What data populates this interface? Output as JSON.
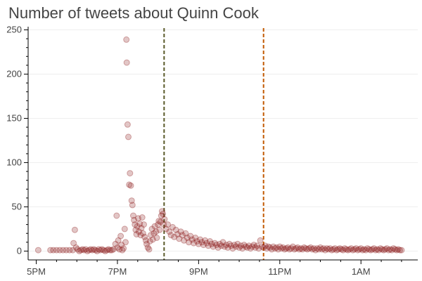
{
  "chart_data": {
    "type": "scatter",
    "title": "Number of tweets about Quinn Cook",
    "xlabel": "",
    "ylabel": "",
    "x_unit": "hours (17 = 5PM, 25 = 1AM next day)",
    "xlim": [
      16.8,
      26.4
    ],
    "ylim": [
      -10,
      252
    ],
    "x_ticks": [
      {
        "value": 17,
        "label": "5PM"
      },
      {
        "value": 19,
        "label": "7PM"
      },
      {
        "value": 21,
        "label": "9PM"
      },
      {
        "value": 23,
        "label": "11PM"
      },
      {
        "value": 25,
        "label": "1AM"
      }
    ],
    "y_ticks": [
      {
        "value": 0,
        "label": "0"
      },
      {
        "value": 50,
        "label": "50"
      },
      {
        "value": 100,
        "label": "100"
      },
      {
        "value": 150,
        "label": "150"
      },
      {
        "value": 200,
        "label": "200"
      },
      {
        "value": 250,
        "label": "250"
      }
    ],
    "grid": "horizontal",
    "legend": "none",
    "point_color": "#8b1a1a",
    "point_opacity": 0.25,
    "vlines": [
      {
        "x": 20.15,
        "color": "#5a5a2a"
      },
      {
        "x": 22.6,
        "color": "#c25a00"
      }
    ],
    "points": [
      [
        17.05,
        1
      ],
      [
        17.35,
        1
      ],
      [
        17.42,
        1
      ],
      [
        17.5,
        1
      ],
      [
        17.58,
        1
      ],
      [
        17.66,
        1
      ],
      [
        17.74,
        1
      ],
      [
        17.82,
        1
      ],
      [
        17.9,
        1
      ],
      [
        17.98,
        4
      ],
      [
        17.92,
        9
      ],
      [
        17.95,
        24
      ],
      [
        18.02,
        2
      ],
      [
        18.06,
        0
      ],
      [
        18.1,
        1
      ],
      [
        18.14,
        2
      ],
      [
        18.18,
        1
      ],
      [
        18.22,
        2
      ],
      [
        18.26,
        0
      ],
      [
        18.3,
        1
      ],
      [
        18.34,
        2
      ],
      [
        18.38,
        1
      ],
      [
        18.42,
        2
      ],
      [
        18.46,
        1
      ],
      [
        18.5,
        0
      ],
      [
        18.54,
        2
      ],
      [
        18.58,
        1
      ],
      [
        18.62,
        2
      ],
      [
        18.66,
        1
      ],
      [
        18.7,
        0
      ],
      [
        18.74,
        1
      ],
      [
        18.78,
        2
      ],
      [
        18.82,
        1
      ],
      [
        18.86,
        1
      ],
      [
        18.9,
        2
      ],
      [
        18.95,
        8
      ],
      [
        18.98,
        40
      ],
      [
        19.0,
        4
      ],
      [
        19.02,
        12
      ],
      [
        19.05,
        2
      ],
      [
        19.08,
        17
      ],
      [
        19.1,
        7
      ],
      [
        19.12,
        1
      ],
      [
        19.15,
        3
      ],
      [
        19.18,
        25
      ],
      [
        19.2,
        10
      ],
      [
        19.22,
        239
      ],
      [
        19.23,
        213
      ],
      [
        19.25,
        143
      ],
      [
        19.27,
        129
      ],
      [
        19.29,
        75
      ],
      [
        19.31,
        88
      ],
      [
        19.33,
        74
      ],
      [
        19.35,
        57
      ],
      [
        19.37,
        52
      ],
      [
        19.39,
        40
      ],
      [
        19.41,
        35
      ],
      [
        19.43,
        30
      ],
      [
        19.45,
        24
      ],
      [
        19.47,
        19
      ],
      [
        19.49,
        28
      ],
      [
        19.51,
        37
      ],
      [
        19.53,
        22
      ],
      [
        19.55,
        31
      ],
      [
        19.57,
        18
      ],
      [
        19.59,
        26
      ],
      [
        19.61,
        38
      ],
      [
        19.63,
        20
      ],
      [
        19.65,
        30
      ],
      [
        19.67,
        16
      ],
      [
        19.7,
        12
      ],
      [
        19.72,
        8
      ],
      [
        19.75,
        4
      ],
      [
        19.78,
        2
      ],
      [
        19.8,
        11
      ],
      [
        19.82,
        18
      ],
      [
        19.85,
        25
      ],
      [
        19.87,
        13
      ],
      [
        19.9,
        20
      ],
      [
        19.92,
        28
      ],
      [
        19.95,
        22
      ],
      [
        19.97,
        15
      ],
      [
        20.0,
        30
      ],
      [
        20.02,
        34
      ],
      [
        20.04,
        24
      ],
      [
        20.06,
        33
      ],
      [
        20.08,
        40
      ],
      [
        20.1,
        45
      ],
      [
        20.12,
        42
      ],
      [
        20.14,
        30
      ],
      [
        20.16,
        36
      ],
      [
        20.2,
        25
      ],
      [
        20.24,
        30
      ],
      [
        20.28,
        22
      ],
      [
        20.32,
        18
      ],
      [
        20.36,
        27
      ],
      [
        20.4,
        16
      ],
      [
        20.44,
        24
      ],
      [
        20.48,
        19
      ],
      [
        20.52,
        14
      ],
      [
        20.56,
        22
      ],
      [
        20.6,
        18
      ],
      [
        20.64,
        12
      ],
      [
        20.68,
        20
      ],
      [
        20.72,
        15
      ],
      [
        20.76,
        10
      ],
      [
        20.8,
        17
      ],
      [
        20.84,
        13
      ],
      [
        20.88,
        9
      ],
      [
        20.92,
        15
      ],
      [
        20.96,
        11
      ],
      [
        21.0,
        8
      ],
      [
        21.04,
        13
      ],
      [
        21.08,
        10
      ],
      [
        21.12,
        7
      ],
      [
        21.16,
        12
      ],
      [
        21.2,
        9
      ],
      [
        21.24,
        6
      ],
      [
        21.28,
        11
      ],
      [
        21.32,
        8
      ],
      [
        21.36,
        5
      ],
      [
        21.4,
        9
      ],
      [
        21.44,
        7
      ],
      [
        21.48,
        4
      ],
      [
        21.52,
        8
      ],
      [
        21.56,
        6
      ],
      [
        21.6,
        10
      ],
      [
        21.64,
        5
      ],
      [
        21.68,
        7
      ],
      [
        21.72,
        4
      ],
      [
        21.76,
        8
      ],
      [
        21.8,
        6
      ],
      [
        21.84,
        3
      ],
      [
        21.88,
        7
      ],
      [
        21.92,
        5
      ],
      [
        21.96,
        8
      ],
      [
        22.0,
        4
      ],
      [
        22.04,
        6
      ],
      [
        22.08,
        3
      ],
      [
        22.12,
        7
      ],
      [
        22.16,
        5
      ],
      [
        22.2,
        4
      ],
      [
        22.24,
        6
      ],
      [
        22.28,
        3
      ],
      [
        22.32,
        5
      ],
      [
        22.36,
        7
      ],
      [
        22.4,
        4
      ],
      [
        22.44,
        6
      ],
      [
        22.48,
        3
      ],
      [
        22.52,
        12
      ],
      [
        22.56,
        5
      ],
      [
        22.6,
        4
      ],
      [
        22.64,
        6
      ],
      [
        22.68,
        3
      ],
      [
        22.72,
        5
      ],
      [
        22.76,
        4
      ],
      [
        22.8,
        2
      ],
      [
        22.84,
        5
      ],
      [
        22.88,
        3
      ],
      [
        22.92,
        4
      ],
      [
        22.96,
        2
      ],
      [
        23.0,
        5
      ],
      [
        23.04,
        3
      ],
      [
        23.08,
        4
      ],
      [
        23.12,
        2
      ],
      [
        23.16,
        3
      ],
      [
        23.2,
        4
      ],
      [
        23.24,
        2
      ],
      [
        23.28,
        3
      ],
      [
        23.32,
        5
      ],
      [
        23.36,
        2
      ],
      [
        23.4,
        3
      ],
      [
        23.44,
        4
      ],
      [
        23.48,
        2
      ],
      [
        23.52,
        3
      ],
      [
        23.56,
        2
      ],
      [
        23.6,
        4
      ],
      [
        23.64,
        3
      ],
      [
        23.68,
        2
      ],
      [
        23.72,
        3
      ],
      [
        23.76,
        4
      ],
      [
        23.8,
        2
      ],
      [
        23.84,
        3
      ],
      [
        23.88,
        1
      ],
      [
        23.92,
        3
      ],
      [
        23.96,
        2
      ],
      [
        24.0,
        4
      ],
      [
        24.04,
        2
      ],
      [
        24.08,
        3
      ],
      [
        24.12,
        1
      ],
      [
        24.16,
        3
      ],
      [
        24.2,
        2
      ],
      [
        24.24,
        3
      ],
      [
        24.28,
        1
      ],
      [
        24.32,
        2
      ],
      [
        24.36,
        3
      ],
      [
        24.4,
        1
      ],
      [
        24.44,
        2
      ],
      [
        24.48,
        3
      ],
      [
        24.52,
        2
      ],
      [
        24.56,
        1
      ],
      [
        24.6,
        3
      ],
      [
        24.64,
        2
      ],
      [
        24.68,
        1
      ],
      [
        24.72,
        2
      ],
      [
        24.76,
        3
      ],
      [
        24.8,
        1
      ],
      [
        24.84,
        2
      ],
      [
        24.88,
        3
      ],
      [
        24.92,
        1
      ],
      [
        24.96,
        2
      ],
      [
        25.0,
        3
      ],
      [
        25.04,
        1
      ],
      [
        25.08,
        2
      ],
      [
        25.12,
        1
      ],
      [
        25.16,
        3
      ],
      [
        25.2,
        2
      ],
      [
        25.24,
        1
      ],
      [
        25.28,
        2
      ],
      [
        25.32,
        3
      ],
      [
        25.36,
        1
      ],
      [
        25.4,
        2
      ],
      [
        25.44,
        1
      ],
      [
        25.48,
        3
      ],
      [
        25.52,
        2
      ],
      [
        25.56,
        1
      ],
      [
        25.6,
        2
      ],
      [
        25.64,
        3
      ],
      [
        25.68,
        1
      ],
      [
        25.72,
        2
      ],
      [
        25.76,
        1
      ],
      [
        25.8,
        3
      ],
      [
        25.84,
        2
      ],
      [
        25.88,
        1
      ],
      [
        25.92,
        2
      ],
      [
        25.96,
        1
      ],
      [
        26.0,
        1
      ]
    ]
  }
}
